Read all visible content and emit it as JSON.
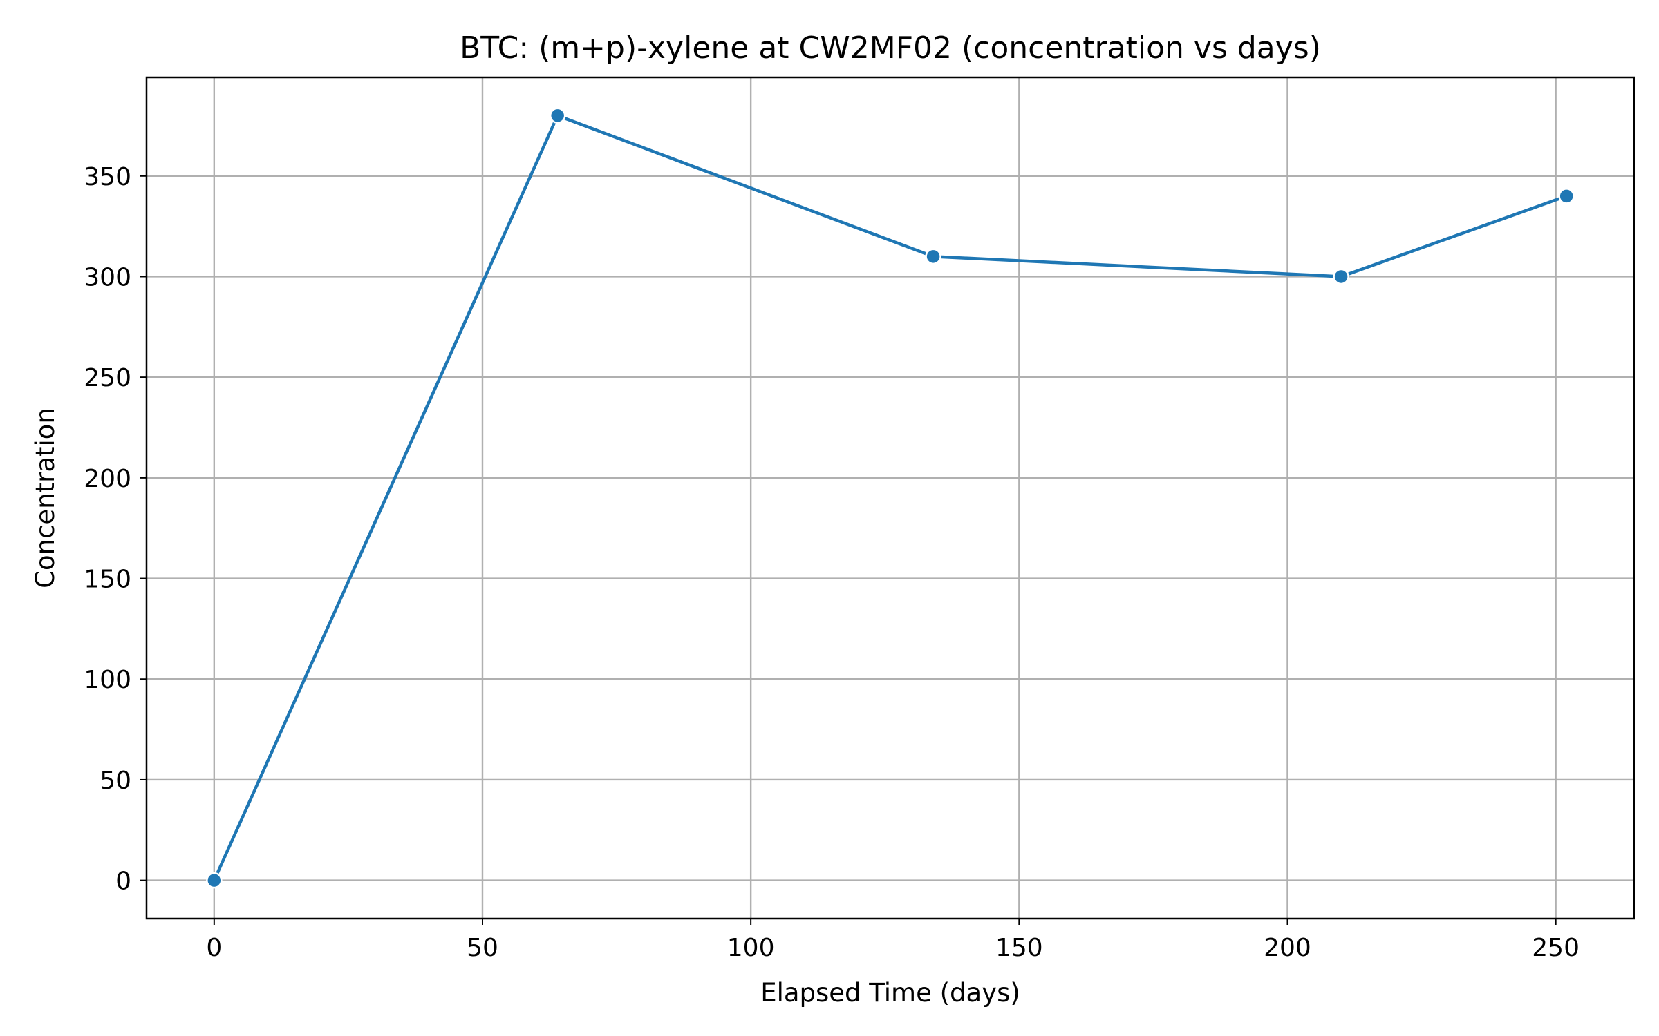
{
  "chart_data": {
    "type": "line",
    "title": "BTC: (m+p)-xylene at CW2MF02 (concentration vs days)",
    "xlabel": "Elapsed Time (days)",
    "ylabel": "Concentration",
    "xlim": [
      -12.6,
      264.6
    ],
    "ylim": [
      -19,
      399
    ],
    "xticks": [
      0,
      50,
      100,
      150,
      200,
      250
    ],
    "yticks": [
      0,
      50,
      100,
      150,
      200,
      250,
      300,
      350
    ],
    "grid": true,
    "series": [
      {
        "color": "#1f77b4",
        "marker": "circle",
        "x": [
          0,
          64,
          134,
          210,
          252
        ],
        "y": [
          0,
          380,
          310,
          300,
          340
        ]
      }
    ]
  }
}
